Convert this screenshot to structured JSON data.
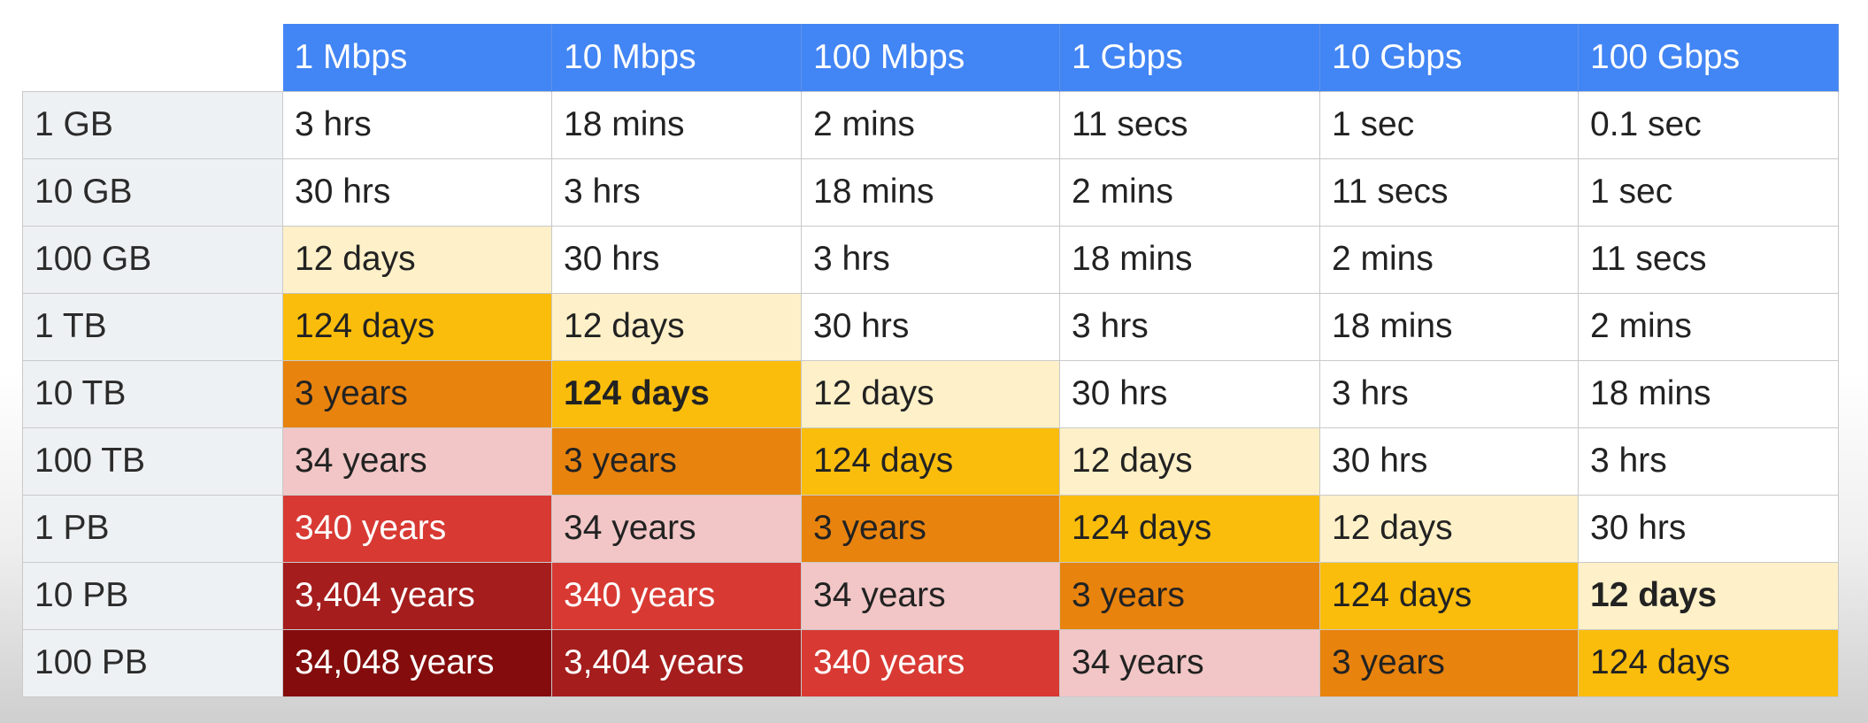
{
  "colors": {
    "header": "#4285f4",
    "row_header": "#eef1f3",
    "scale": {
      "white": "#ffffff",
      "pale_yellow": "#fef0c8",
      "amber": "#fbbd0c",
      "orange": "#e8830e",
      "pink": "#f2c6c6",
      "red": "#d83a33",
      "dark_red": "#a51d1d",
      "maroon": "#840c0c"
    }
  },
  "table": {
    "columns": [
      "1 Mbps",
      "10 Mbps",
      "100 Mbps",
      "1 Gbps",
      "10 Gbps",
      "100 Gbps"
    ],
    "rows": [
      {
        "label": "1 GB",
        "cells": [
          {
            "text": "3 hrs",
            "color": "white"
          },
          {
            "text": "18 mins",
            "color": "white"
          },
          {
            "text": "2 mins",
            "color": "white"
          },
          {
            "text": "11 secs",
            "color": "white"
          },
          {
            "text": "1 sec",
            "color": "white"
          },
          {
            "text": "0.1 sec",
            "color": "white"
          }
        ]
      },
      {
        "label": "10 GB",
        "cells": [
          {
            "text": "30 hrs",
            "color": "white"
          },
          {
            "text": "3 hrs",
            "color": "white"
          },
          {
            "text": "18 mins",
            "color": "white"
          },
          {
            "text": "2 mins",
            "color": "white"
          },
          {
            "text": "11 secs",
            "color": "white"
          },
          {
            "text": "1 sec",
            "color": "white"
          }
        ]
      },
      {
        "label": "100 GB",
        "cells": [
          {
            "text": "12 days",
            "color": "pale_yellow"
          },
          {
            "text": "30 hrs",
            "color": "white"
          },
          {
            "text": "3 hrs",
            "color": "white"
          },
          {
            "text": "18 mins",
            "color": "white"
          },
          {
            "text": "2 mins",
            "color": "white"
          },
          {
            "text": "11 secs",
            "color": "white"
          }
        ]
      },
      {
        "label": "1 TB",
        "cells": [
          {
            "text": "124 days",
            "color": "amber"
          },
          {
            "text": "12 days",
            "color": "pale_yellow"
          },
          {
            "text": "30 hrs",
            "color": "white"
          },
          {
            "text": "3 hrs",
            "color": "white"
          },
          {
            "text": "18 mins",
            "color": "white"
          },
          {
            "text": "2 mins",
            "color": "white"
          }
        ]
      },
      {
        "label": "10 TB",
        "cells": [
          {
            "text": "3 years",
            "color": "orange"
          },
          {
            "text": "124 days",
            "color": "amber",
            "bold": true
          },
          {
            "text": "12 days",
            "color": "pale_yellow"
          },
          {
            "text": "30 hrs",
            "color": "white"
          },
          {
            "text": "3 hrs",
            "color": "white"
          },
          {
            "text": "18 mins",
            "color": "white"
          }
        ]
      },
      {
        "label": "100 TB",
        "cells": [
          {
            "text": "34 years",
            "color": "pink"
          },
          {
            "text": "3 years",
            "color": "orange"
          },
          {
            "text": "124 days",
            "color": "amber"
          },
          {
            "text": "12 days",
            "color": "pale_yellow"
          },
          {
            "text": "30 hrs",
            "color": "white"
          },
          {
            "text": "3 hrs",
            "color": "white"
          }
        ]
      },
      {
        "label": "1 PB",
        "cells": [
          {
            "text": "340 years",
            "color": "red"
          },
          {
            "text": "34 years",
            "color": "pink"
          },
          {
            "text": "3 years",
            "color": "orange"
          },
          {
            "text": "124 days",
            "color": "amber"
          },
          {
            "text": "12 days",
            "color": "pale_yellow"
          },
          {
            "text": "30 hrs",
            "color": "white"
          }
        ]
      },
      {
        "label": "10 PB",
        "cells": [
          {
            "text": "3,404 years",
            "color": "dark_red"
          },
          {
            "text": "340 years",
            "color": "red"
          },
          {
            "text": "34 years",
            "color": "pink"
          },
          {
            "text": "3 years",
            "color": "orange"
          },
          {
            "text": "124 days",
            "color": "amber"
          },
          {
            "text": "12 days",
            "color": "pale_yellow",
            "bold": true
          }
        ]
      },
      {
        "label": "100 PB",
        "cells": [
          {
            "text": "34,048 years",
            "color": "maroon"
          },
          {
            "text": "3,404 years",
            "color": "dark_red"
          },
          {
            "text": "340 years",
            "color": "red"
          },
          {
            "text": "34 years",
            "color": "pink"
          },
          {
            "text": "3 years",
            "color": "orange"
          },
          {
            "text": "124 days",
            "color": "amber"
          }
        ]
      }
    ]
  }
}
